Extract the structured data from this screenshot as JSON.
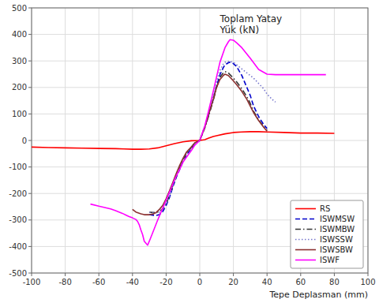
{
  "chart_data": {
    "type": "line",
    "title": "Toplam Yatay\nYük (kN)",
    "x_label": "Tepe Deplasman (mm)",
    "xlim": [
      -100,
      100
    ],
    "ylim": [
      -500,
      500
    ],
    "xticks": [
      -100,
      -80,
      -60,
      -40,
      -20,
      0,
      20,
      40,
      60,
      80,
      100
    ],
    "yticks": [
      -500,
      -400,
      -300,
      -200,
      -100,
      0,
      100,
      200,
      300,
      400,
      500
    ],
    "grid": true,
    "legend": "lower right",
    "series": [
      {
        "name": "RS",
        "color": "#ff0000",
        "line_style": "solid",
        "x": [
          -100,
          -90,
          -80,
          -70,
          -60,
          -50,
          -45,
          -40,
          -35,
          -30,
          -25,
          -20,
          -15,
          -10,
          -5,
          0,
          3,
          5,
          8,
          10,
          15,
          20,
          25,
          30,
          35,
          40,
          50,
          60,
          70,
          80
        ],
        "values": [
          -25,
          -27,
          -28,
          -29,
          -30,
          -31,
          -32,
          -33,
          -33,
          -32,
          -28,
          -20,
          -12,
          -5,
          -1,
          0,
          3,
          8,
          15,
          18,
          25,
          30,
          32,
          33,
          33,
          32,
          30,
          28,
          28,
          27
        ]
      },
      {
        "name": "ISWMSW",
        "color": "#0000cc",
        "line_style": "dashed",
        "x": [
          -30,
          -28,
          -26,
          -24,
          -22,
          -20,
          -18,
          -16,
          -14,
          -12,
          -10,
          -8,
          -5,
          -3,
          0,
          3,
          5,
          8,
          10,
          12,
          14,
          15,
          17,
          18,
          20,
          22,
          25,
          28,
          30,
          32,
          35,
          38,
          40
        ],
        "values": [
          -280,
          -282,
          -283,
          -280,
          -268,
          -245,
          -215,
          -175,
          -140,
          -110,
          -80,
          -55,
          -30,
          -12,
          0,
          50,
          90,
          155,
          205,
          248,
          275,
          285,
          293,
          295,
          290,
          278,
          245,
          200,
          170,
          130,
          90,
          60,
          45
        ]
      },
      {
        "name": "ISWMBW",
        "color": "#333333",
        "line_style": "dashdot",
        "x": [
          -30,
          -28,
          -26,
          -24,
          -22,
          -20,
          -18,
          -16,
          -14,
          -12,
          -10,
          -8,
          -5,
          -3,
          0,
          3,
          5,
          8,
          10,
          12,
          14,
          15,
          17,
          18,
          20,
          22,
          25,
          28,
          30,
          32,
          35,
          38,
          40
        ],
        "values": [
          -270,
          -272,
          -272,
          -268,
          -258,
          -238,
          -208,
          -170,
          -135,
          -105,
          -75,
          -50,
          -27,
          -10,
          0,
          48,
          88,
          150,
          200,
          238,
          255,
          260,
          255,
          248,
          235,
          220,
          195,
          165,
          140,
          110,
          78,
          52,
          38
        ]
      },
      {
        "name": "ISWSSW",
        "color": "#7777cc",
        "line_style": "dotted",
        "x": [
          -30,
          -28,
          -26,
          -24,
          -22,
          -20,
          -18,
          -16,
          -14,
          -12,
          -10,
          -8,
          -5,
          -3,
          0,
          3,
          5,
          8,
          10,
          12,
          14,
          15,
          17,
          18,
          20,
          22,
          25,
          28,
          30,
          32,
          35,
          38,
          40,
          43,
          45
        ],
        "values": [
          -270,
          -272,
          -273,
          -270,
          -260,
          -240,
          -210,
          -170,
          -135,
          -105,
          -75,
          -50,
          -27,
          -10,
          0,
          55,
          100,
          170,
          222,
          265,
          288,
          295,
          298,
          298,
          295,
          285,
          270,
          255,
          245,
          235,
          215,
          195,
          175,
          155,
          145
        ]
      },
      {
        "name": "ISWSBW",
        "color": "#8B3030",
        "line_style": "solid",
        "x": [
          -40,
          -38,
          -35,
          -33,
          -30,
          -28,
          -26,
          -24,
          -22,
          -20,
          -18,
          -16,
          -14,
          -12,
          -10,
          -8,
          -5,
          -3,
          0,
          3,
          5,
          8,
          10,
          12,
          14,
          15,
          17,
          18,
          20,
          22,
          25,
          28,
          30,
          32,
          35,
          38,
          40
        ],
        "values": [
          -260,
          -270,
          -277,
          -280,
          -280,
          -278,
          -272,
          -260,
          -245,
          -220,
          -190,
          -158,
          -125,
          -95,
          -68,
          -45,
          -24,
          -9,
          0,
          50,
          92,
          155,
          200,
          230,
          245,
          250,
          245,
          238,
          225,
          210,
          185,
          155,
          130,
          105,
          75,
          50,
          35
        ]
      },
      {
        "name": "ISWF",
        "color": "#ff00ff",
        "line_style": "solid",
        "x": [
          -65,
          -60,
          -55,
          -53,
          -50,
          -48,
          -46,
          -44,
          -42,
          -40,
          -38,
          -37,
          -36,
          -35,
          -34,
          -33,
          -31,
          -30,
          -28,
          -25,
          -22,
          -20,
          -17,
          -15,
          -12,
          -10,
          -7,
          -5,
          -3,
          0,
          3,
          5,
          8,
          10,
          12,
          15,
          17,
          18,
          20,
          22,
          25,
          30,
          35,
          40,
          45,
          50,
          55,
          60,
          65,
          70,
          75
        ],
        "values": [
          -240,
          -248,
          -255,
          -258,
          -265,
          -270,
          -275,
          -281,
          -287,
          -292,
          -298,
          -305,
          -318,
          -338,
          -355,
          -380,
          -395,
          -380,
          -348,
          -300,
          -255,
          -225,
          -180,
          -148,
          -110,
          -82,
          -55,
          -38,
          -18,
          0,
          55,
          105,
          185,
          240,
          295,
          350,
          372,
          380,
          378,
          368,
          350,
          310,
          268,
          250,
          248,
          248,
          248,
          248,
          248,
          248,
          248
        ]
      }
    ]
  }
}
